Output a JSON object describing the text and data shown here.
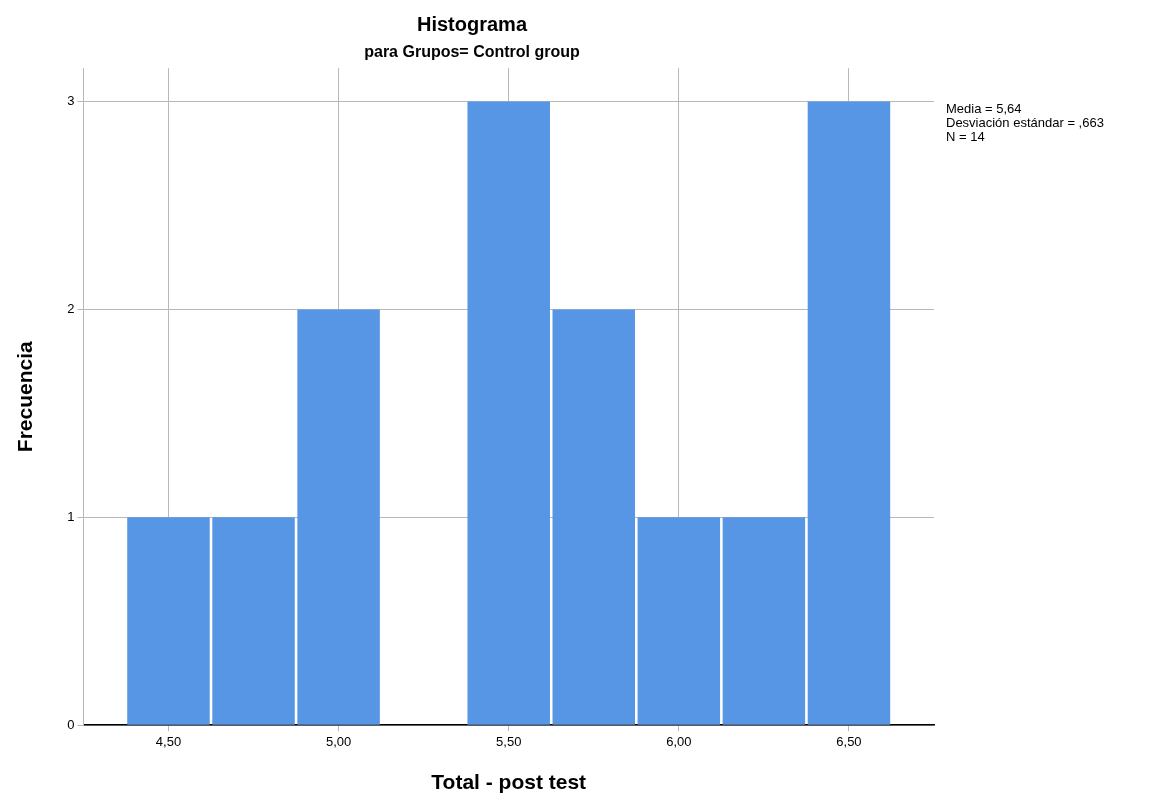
{
  "chart_data": {
    "type": "histogram",
    "title": "Histograma",
    "subtitle": "para Grupos= Control group",
    "xlabel": "Total - post test",
    "ylabel": "Frecuencia",
    "bins": [
      4.375,
      4.625,
      4.875,
      5.125,
      5.375,
      5.625,
      5.875,
      6.125,
      6.375,
      6.625
    ],
    "values": [
      1,
      1,
      2,
      0,
      3,
      2,
      1,
      1,
      3
    ],
    "color": "#5796e4",
    "xlim": [
      4.25,
      6.75
    ],
    "xticks": [
      {
        "value": 4.5,
        "label": "4,50"
      },
      {
        "value": 5,
        "label": "5,00"
      },
      {
        "value": 5.5,
        "label": "5,50"
      },
      {
        "value": 6,
        "label": "6,00"
      },
      {
        "value": 6.5,
        "label": "6,50"
      }
    ],
    "ylim": [
      0,
      3.16
    ],
    "yticks": [
      0,
      1,
      2,
      3
    ],
    "grid": true,
    "legend": false,
    "annotations": [
      "Media = 5,64",
      "Desviación estándar = ,663",
      "N = 14"
    ]
  }
}
